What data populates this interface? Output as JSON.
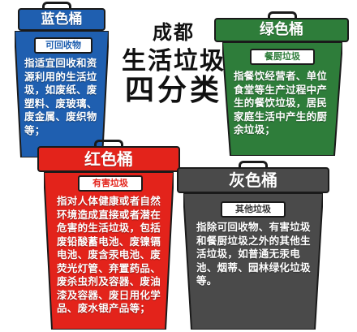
{
  "title": {
    "line1": "成都",
    "line2": "生活垃圾",
    "line3": "四分类"
  },
  "bins": {
    "blue": {
      "name": "蓝色桶",
      "category": "可回收物",
      "description": "指适宜回收和资源利用的生活垃圾，如废纸、废塑料、废玻璃、废金属、废织物等；",
      "color": "#1f5fb0"
    },
    "green": {
      "name": "绿色桶",
      "category": "餐厨垃圾",
      "description": "指餐饮经营者、单位食堂等生产过程中产生的餐饮垃圾，居民家庭生活中产生的厨余垃圾；",
      "color": "#2e7d3a"
    },
    "red": {
      "name": "红色桶",
      "category": "有害垃圾",
      "description": "指对人体健康或者自然环境造成直接或者潜在危害的生活垃圾，包括废铅酸蓄电池、废镍镉电池、废含汞电池、废荧光灯管、弃置药品、废杀虫剂及容器、废油漆及容器、废日用化学品、废水银产品等；",
      "color": "#e3231b"
    },
    "gray": {
      "name": "灰色桶",
      "category": "其他垃圾",
      "description": "指除可回收物、有害垃圾和餐厨垃圾之外的其他生活垃圾，如普通无汞电池、烟蒂、园林绿化垃圾等。",
      "color": "#4a4a4a"
    }
  }
}
